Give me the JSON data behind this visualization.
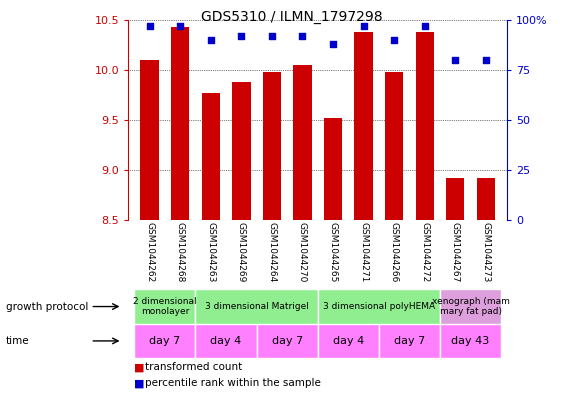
{
  "title": "GDS5310 / ILMN_1797298",
  "samples": [
    "GSM1044262",
    "GSM1044268",
    "GSM1044263",
    "GSM1044269",
    "GSM1044264",
    "GSM1044270",
    "GSM1044265",
    "GSM1044271",
    "GSM1044266",
    "GSM1044272",
    "GSM1044267",
    "GSM1044273"
  ],
  "red_values": [
    10.1,
    10.43,
    9.77,
    9.88,
    9.98,
    10.05,
    9.52,
    10.38,
    9.98,
    10.38,
    8.92,
    8.92
  ],
  "blue_values": [
    97,
    97,
    90,
    92,
    92,
    92,
    88,
    97,
    90,
    97,
    80,
    80
  ],
  "y_min": 8.5,
  "y_max": 10.5,
  "y_ticks": [
    8.5,
    9.0,
    9.5,
    10.0,
    10.5
  ],
  "y2_ticks": [
    0,
    25,
    50,
    75,
    100
  ],
  "y2_tick_labels": [
    "0",
    "25",
    "50",
    "75",
    "100%"
  ],
  "bar_color": "#cc0000",
  "dot_color": "#0000cc",
  "bar_width": 0.6,
  "legend_label_red": "transformed count",
  "legend_label_blue": "percentile rank within the sample",
  "left_color": "#cc0000",
  "right_color": "#0000cc",
  "sample_bg_color": "#c8c8c8",
  "growth_protocol_green": "#90EE90",
  "growth_protocol_purple": "#DDA0DD",
  "time_color": "#FF80FF",
  "groups_gp": [
    [
      0,
      2,
      "2 dimensional\nmonolayer",
      "#90EE90"
    ],
    [
      2,
      6,
      "3 dimensional Matrigel",
      "#90EE90"
    ],
    [
      6,
      10,
      "3 dimensional polyHEMA",
      "#90EE90"
    ],
    [
      10,
      12,
      "xenograph (mam\nmary fat pad)",
      "#DDA0DD"
    ]
  ],
  "time_groups": [
    [
      0,
      2,
      "day 7",
      "#FF80FF"
    ],
    [
      2,
      4,
      "day 4",
      "#FF80FF"
    ],
    [
      4,
      6,
      "day 7",
      "#FF80FF"
    ],
    [
      6,
      8,
      "day 4",
      "#FF80FF"
    ],
    [
      8,
      10,
      "day 7",
      "#FF80FF"
    ],
    [
      10,
      12,
      "day 43",
      "#FF80FF"
    ]
  ]
}
